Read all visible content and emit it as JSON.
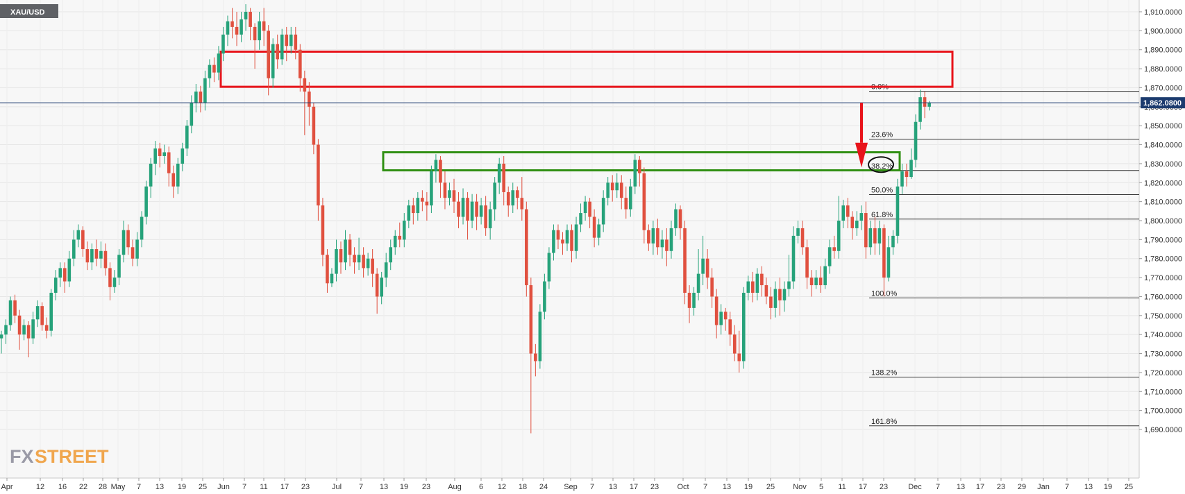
{
  "symbol": "XAU/USD",
  "logo": {
    "part1": "FX",
    "part2": "STREET"
  },
  "last_price_label": "1,862.0800",
  "colors": {
    "up": "#26a27a",
    "down": "#e0503f",
    "resistance_box": "#e8141b",
    "support_box": "#2f8f12",
    "arrow": "#e8141b",
    "price_line": "#1c3b6e",
    "symbol_bg": "#5f6165",
    "price_tag_bg": "#1c3b6e"
  },
  "chart_data": {
    "type": "candlestick",
    "title": "XAU/USD",
    "ylim": [
      1686,
      1916
    ],
    "grid": true,
    "y_ticks": [
      "1,690.0000",
      "1,700.0000",
      "1,710.0000",
      "1,720.0000",
      "1,730.0000",
      "1,740.0000",
      "1,750.0000",
      "1,760.0000",
      "1,770.0000",
      "1,780.0000",
      "1,790.0000",
      "1,800.0000",
      "1,810.0000",
      "1,820.0000",
      "1,830.0000",
      "1,840.0000",
      "1,850.0000",
      "1,860.0000",
      "1,870.0000",
      "1,880.0000",
      "1,890.0000",
      "1,900.0000",
      "1,910.0000"
    ],
    "x_ticks": [
      "Apr",
      "12",
      "16",
      "22",
      "28",
      "May",
      "7",
      "13",
      "19",
      "25",
      "Jun",
      "7",
      "11",
      "17",
      "23",
      "Jul",
      "7",
      "13",
      "19",
      "23",
      "Aug",
      "6",
      "12",
      "18",
      "24",
      "Sep",
      "7",
      "13",
      "17",
      "23",
      "Oct",
      "7",
      "13",
      "19",
      "25",
      "Nov",
      "5",
      "11",
      "17",
      "23",
      "Dec",
      "7",
      "13",
      "17",
      "23",
      "29",
      "Jan",
      "7",
      "13",
      "19",
      "25"
    ],
    "last_price": 1862.08,
    "fibonacci": [
      {
        "label": "0.0%",
        "value": 1868.1
      },
      {
        "label": "23.6%",
        "value": 1842.9
      },
      {
        "label": "38.2%",
        "value": 1826.4
      },
      {
        "label": "50.0%",
        "value": 1813.7
      },
      {
        "label": "61.8%",
        "value": 1800.8
      },
      {
        "label": "100.0%",
        "value": 1759.3
      },
      {
        "label": "138.2%",
        "value": 1717.6
      },
      {
        "label": "161.8%",
        "value": 1691.9
      }
    ],
    "zones": [
      {
        "kind": "resistance",
        "from": 1870.5,
        "to": 1889.0
      },
      {
        "kind": "support",
        "from": 1826.5,
        "to": 1836.0
      }
    ],
    "candles": [
      [
        1738,
        1740,
        1730,
        1742
      ],
      [
        1740,
        1745,
        1735,
        1748
      ],
      [
        1745,
        1758,
        1742,
        1760
      ],
      [
        1758,
        1750,
        1746,
        1761
      ],
      [
        1750,
        1740,
        1732,
        1753
      ],
      [
        1740,
        1745,
        1737,
        1748
      ],
      [
        1745,
        1738,
        1728,
        1747
      ],
      [
        1738,
        1748,
        1735,
        1752
      ],
      [
        1748,
        1755,
        1744,
        1758
      ],
      [
        1755,
        1745,
        1742,
        1757
      ],
      [
        1745,
        1742,
        1738,
        1749
      ],
      [
        1742,
        1762,
        1739,
        1764
      ],
      [
        1762,
        1770,
        1758,
        1774
      ],
      [
        1770,
        1775,
        1765,
        1778
      ],
      [
        1775,
        1768,
        1762,
        1778
      ],
      [
        1768,
        1780,
        1765,
        1784
      ],
      [
        1780,
        1790,
        1776,
        1795
      ],
      [
        1790,
        1795,
        1786,
        1798
      ],
      [
        1795,
        1785,
        1781,
        1797
      ],
      [
        1785,
        1778,
        1774,
        1789
      ],
      [
        1778,
        1785,
        1774,
        1788
      ],
      [
        1785,
        1780,
        1776,
        1790
      ],
      [
        1780,
        1784,
        1775,
        1789
      ],
      [
        1784,
        1775,
        1771,
        1788
      ],
      [
        1775,
        1765,
        1758,
        1778
      ],
      [
        1765,
        1770,
        1762,
        1774
      ],
      [
        1770,
        1782,
        1766,
        1785
      ],
      [
        1782,
        1795,
        1778,
        1800
      ],
      [
        1795,
        1786,
        1782,
        1798
      ],
      [
        1786,
        1780,
        1776,
        1790
      ],
      [
        1780,
        1790,
        1776,
        1794
      ],
      [
        1790,
        1802,
        1786,
        1805
      ],
      [
        1802,
        1818,
        1798,
        1821
      ],
      [
        1818,
        1830,
        1812,
        1833
      ],
      [
        1830,
        1838,
        1824,
        1842
      ],
      [
        1838,
        1834,
        1828,
        1841
      ],
      [
        1834,
        1836,
        1830,
        1840
      ],
      [
        1836,
        1825,
        1818,
        1839
      ],
      [
        1825,
        1818,
        1812,
        1829
      ],
      [
        1818,
        1830,
        1814,
        1833
      ],
      [
        1830,
        1838,
        1826,
        1841
      ],
      [
        1838,
        1850,
        1834,
        1853
      ],
      [
        1850,
        1862,
        1846,
        1866
      ],
      [
        1862,
        1868,
        1857,
        1872
      ],
      [
        1868,
        1862,
        1857,
        1871
      ],
      [
        1862,
        1875,
        1858,
        1879
      ],
      [
        1875,
        1882,
        1870,
        1885
      ],
      [
        1882,
        1878,
        1873,
        1886
      ],
      [
        1878,
        1888,
        1874,
        1892
      ],
      [
        1888,
        1898,
        1884,
        1902
      ],
      [
        1898,
        1905,
        1892,
        1908
      ],
      [
        1905,
        1902,
        1896,
        1912
      ],
      [
        1902,
        1898,
        1892,
        1910
      ],
      [
        1898,
        1906,
        1894,
        1910
      ],
      [
        1906,
        1910,
        1900,
        1914
      ],
      [
        1910,
        1902,
        1895,
        1912
      ],
      [
        1902,
        1895,
        1880,
        1904
      ],
      [
        1895,
        1905,
        1890,
        1910
      ],
      [
        1905,
        1900,
        1892,
        1912
      ],
      [
        1900,
        1875,
        1866,
        1903
      ],
      [
        1875,
        1893,
        1870,
        1896
      ],
      [
        1893,
        1885,
        1880,
        1898
      ],
      [
        1885,
        1898,
        1882,
        1901
      ],
      [
        1898,
        1892,
        1884,
        1902
      ],
      [
        1892,
        1898,
        1888,
        1902
      ],
      [
        1898,
        1890,
        1885,
        1902
      ],
      [
        1890,
        1875,
        1868,
        1893
      ],
      [
        1875,
        1868,
        1845,
        1879
      ],
      [
        1868,
        1860,
        1850,
        1873
      ],
      [
        1860,
        1840,
        1835,
        1862
      ],
      [
        1840,
        1808,
        1800,
        1843
      ],
      [
        1808,
        1782,
        1776,
        1812
      ],
      [
        1782,
        1767,
        1762,
        1785
      ],
      [
        1767,
        1772,
        1765,
        1775
      ],
      [
        1772,
        1785,
        1768,
        1790
      ],
      [
        1785,
        1778,
        1772,
        1789
      ],
      [
        1778,
        1790,
        1774,
        1795
      ],
      [
        1790,
        1782,
        1776,
        1793
      ],
      [
        1782,
        1778,
        1772,
        1786
      ],
      [
        1778,
        1782,
        1774,
        1791
      ],
      [
        1782,
        1775,
        1770,
        1786
      ],
      [
        1775,
        1780,
        1771,
        1783
      ],
      [
        1780,
        1772,
        1765,
        1785
      ],
      [
        1772,
        1760,
        1751,
        1775
      ],
      [
        1760,
        1770,
        1756,
        1773
      ],
      [
        1770,
        1778,
        1765,
        1783
      ],
      [
        1778,
        1786,
        1774,
        1790
      ],
      [
        1786,
        1792,
        1782,
        1795
      ],
      [
        1792,
        1790,
        1786,
        1799
      ],
      [
        1790,
        1800,
        1786,
        1804
      ],
      [
        1800,
        1808,
        1796,
        1811
      ],
      [
        1808,
        1804,
        1798,
        1812
      ],
      [
        1804,
        1812,
        1800,
        1815
      ],
      [
        1812,
        1810,
        1805,
        1816
      ],
      [
        1810,
        1808,
        1800,
        1815
      ],
      [
        1808,
        1826,
        1804,
        1829
      ],
      [
        1826,
        1832,
        1820,
        1835
      ],
      [
        1832,
        1820,
        1812,
        1834
      ],
      [
        1820,
        1812,
        1806,
        1826
      ],
      [
        1812,
        1816,
        1808,
        1820
      ],
      [
        1816,
        1810,
        1804,
        1822
      ],
      [
        1810,
        1802,
        1796,
        1815
      ],
      [
        1802,
        1812,
        1798,
        1817
      ],
      [
        1812,
        1800,
        1790,
        1815
      ],
      [
        1800,
        1810,
        1796,
        1814
      ],
      [
        1810,
        1802,
        1795,
        1814
      ],
      [
        1802,
        1808,
        1798,
        1812
      ],
      [
        1808,
        1796,
        1792,
        1813
      ],
      [
        1796,
        1806,
        1790,
        1810
      ],
      [
        1806,
        1820,
        1800,
        1823
      ],
      [
        1820,
        1830,
        1814,
        1833
      ],
      [
        1830,
        1815,
        1808,
        1834
      ],
      [
        1815,
        1808,
        1802,
        1818
      ],
      [
        1808,
        1816,
        1804,
        1820
      ],
      [
        1816,
        1812,
        1806,
        1818
      ],
      [
        1812,
        1806,
        1800,
        1823
      ],
      [
        1806,
        1766,
        1760,
        1810
      ],
      [
        1766,
        1730,
        1688,
        1770
      ],
      [
        1730,
        1726,
        1718,
        1735
      ],
      [
        1726,
        1752,
        1722,
        1756
      ],
      [
        1752,
        1768,
        1748,
        1772
      ],
      [
        1768,
        1783,
        1764,
        1786
      ],
      [
        1783,
        1795,
        1779,
        1798
      ],
      [
        1795,
        1790,
        1785,
        1798
      ],
      [
        1790,
        1788,
        1782,
        1794
      ],
      [
        1788,
        1795,
        1784,
        1798
      ],
      [
        1795,
        1784,
        1778,
        1798
      ],
      [
        1784,
        1798,
        1780,
        1802
      ],
      [
        1798,
        1804,
        1794,
        1809
      ],
      [
        1804,
        1810,
        1800,
        1813
      ],
      [
        1810,
        1802,
        1796,
        1812
      ],
      [
        1802,
        1791,
        1786,
        1806
      ],
      [
        1791,
        1798,
        1787,
        1801
      ],
      [
        1798,
        1812,
        1794,
        1816
      ],
      [
        1812,
        1820,
        1808,
        1823
      ],
      [
        1820,
        1816,
        1810,
        1824
      ],
      [
        1816,
        1820,
        1812,
        1825
      ],
      [
        1820,
        1812,
        1806,
        1824
      ],
      [
        1812,
        1806,
        1801,
        1818
      ],
      [
        1806,
        1818,
        1802,
        1822
      ],
      [
        1818,
        1832,
        1814,
        1835
      ],
      [
        1832,
        1825,
        1818,
        1834
      ],
      [
        1825,
        1795,
        1788,
        1828
      ],
      [
        1795,
        1788,
        1784,
        1798
      ],
      [
        1788,
        1796,
        1782,
        1800
      ],
      [
        1796,
        1786,
        1782,
        1801
      ],
      [
        1786,
        1790,
        1780,
        1795
      ],
      [
        1790,
        1784,
        1776,
        1796
      ],
      [
        1784,
        1796,
        1780,
        1800
      ],
      [
        1796,
        1806,
        1792,
        1809
      ],
      [
        1806,
        1796,
        1790,
        1808
      ],
      [
        1796,
        1762,
        1756,
        1800
      ],
      [
        1762,
        1754,
        1746,
        1766
      ],
      [
        1754,
        1762,
        1750,
        1765
      ],
      [
        1762,
        1772,
        1758,
        1785
      ],
      [
        1772,
        1780,
        1766,
        1792
      ],
      [
        1780,
        1770,
        1764,
        1785
      ],
      [
        1770,
        1760,
        1754,
        1775
      ],
      [
        1760,
        1745,
        1738,
        1764
      ],
      [
        1745,
        1752,
        1740,
        1756
      ],
      [
        1752,
        1748,
        1742,
        1754
      ],
      [
        1748,
        1740,
        1734,
        1752
      ],
      [
        1740,
        1730,
        1726,
        1745
      ],
      [
        1730,
        1726,
        1720,
        1742
      ],
      [
        1726,
        1762,
        1722,
        1765
      ],
      [
        1762,
        1768,
        1758,
        1771
      ],
      [
        1768,
        1762,
        1757,
        1773
      ],
      [
        1762,
        1772,
        1758,
        1775
      ],
      [
        1772,
        1766,
        1760,
        1776
      ],
      [
        1766,
        1760,
        1756,
        1770
      ],
      [
        1760,
        1754,
        1748,
        1765
      ],
      [
        1754,
        1764,
        1749,
        1768
      ],
      [
        1764,
        1758,
        1750,
        1770
      ],
      [
        1758,
        1764,
        1752,
        1768
      ],
      [
        1764,
        1768,
        1760,
        1782
      ],
      [
        1768,
        1792,
        1764,
        1797
      ],
      [
        1792,
        1796,
        1788,
        1800
      ],
      [
        1796,
        1786,
        1782,
        1800
      ],
      [
        1786,
        1770,
        1764,
        1790
      ],
      [
        1770,
        1766,
        1760,
        1774
      ],
      [
        1766,
        1770,
        1764,
        1774
      ],
      [
        1770,
        1766,
        1762,
        1776
      ],
      [
        1766,
        1776,
        1764,
        1780
      ],
      [
        1776,
        1786,
        1772,
        1790
      ],
      [
        1786,
        1784,
        1780,
        1792
      ],
      [
        1784,
        1800,
        1780,
        1813
      ],
      [
        1800,
        1808,
        1796,
        1811
      ],
      [
        1808,
        1802,
        1796,
        1812
      ],
      [
        1802,
        1796,
        1790,
        1805
      ],
      [
        1796,
        1800,
        1792,
        1805
      ],
      [
        1800,
        1804,
        1795,
        1808
      ],
      [
        1804,
        1786,
        1780,
        1810
      ],
      [
        1786,
        1796,
        1782,
        1800
      ],
      [
        1796,
        1788,
        1782,
        1802
      ],
      [
        1788,
        1796,
        1782,
        1800
      ],
      [
        1796,
        1770,
        1760,
        1798
      ],
      [
        1770,
        1786,
        1768,
        1792
      ],
      [
        1786,
        1792,
        1782,
        1795
      ],
      [
        1792,
        1818,
        1788,
        1822
      ],
      [
        1818,
        1826,
        1814,
        1830
      ],
      [
        1826,
        1823,
        1818,
        1830
      ],
      [
        1823,
        1832,
        1822,
        1838
      ],
      [
        1832,
        1852,
        1828,
        1856
      ],
      [
        1852,
        1865,
        1848,
        1869
      ],
      [
        1865,
        1860,
        1854,
        1868
      ],
      [
        1860,
        1862,
        1858,
        1863
      ]
    ]
  }
}
